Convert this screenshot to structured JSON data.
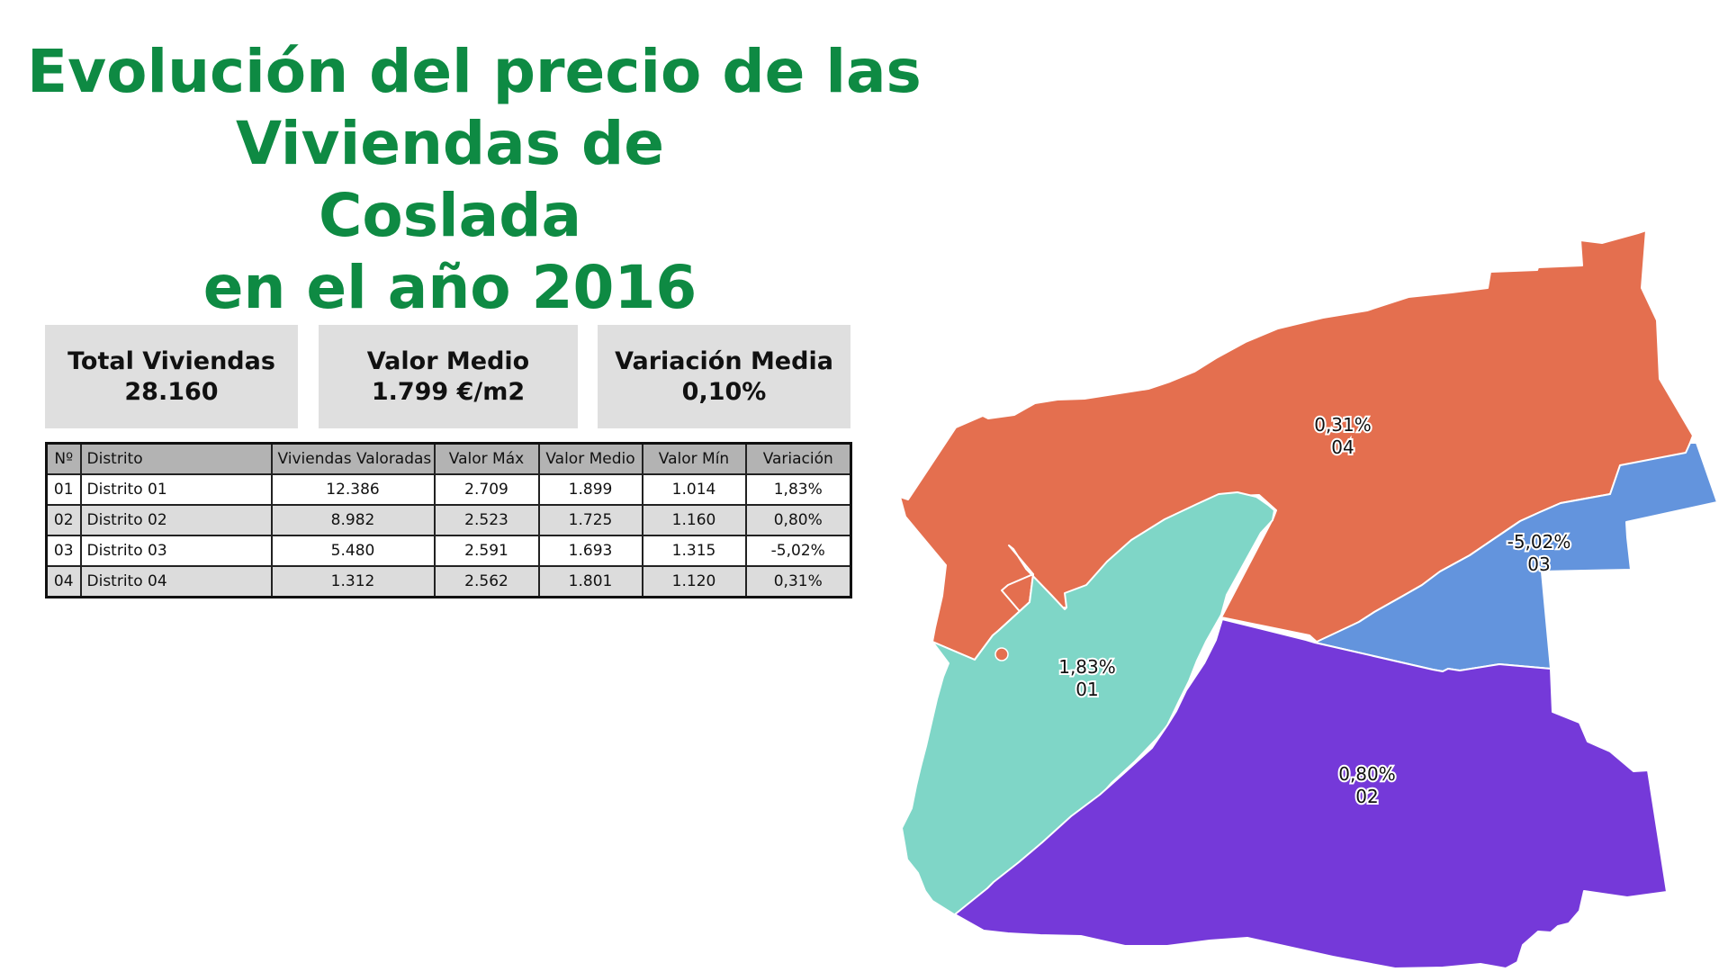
{
  "title": {
    "line1": "Evolución del precio de las",
    "line2": "Viviendas de",
    "line3": "Coslada",
    "line4": "en el año 2016"
  },
  "stats": {
    "total": {
      "label": "Total Viviendas",
      "value": "28.160"
    },
    "medio": {
      "label": "Valor Medio",
      "value": "1.799 €/m2"
    },
    "variacion": {
      "label": "Variación Media",
      "value": "0,10%"
    }
  },
  "table": {
    "headers": [
      "Nº",
      "Distrito",
      "Viviendas Valoradas",
      "Valor Máx",
      "Valor Medio",
      "Valor Mín",
      "Variación"
    ],
    "rows": [
      [
        "01",
        "Distrito 01",
        "12.386",
        "2.709",
        "1.899",
        "1.014",
        "1,83%"
      ],
      [
        "02",
        "Distrito 02",
        "8.982",
        "2.523",
        "1.725",
        "1.160",
        "0,80%"
      ],
      [
        "03",
        "Distrito 03",
        "5.480",
        "2.591",
        "1.693",
        "1.315",
        "-5,02%"
      ],
      [
        "04",
        "Distrito 04",
        "1.312",
        "2.562",
        "1.801",
        "1.120",
        "0,31%"
      ]
    ]
  },
  "map": {
    "districts": [
      {
        "code": "04",
        "variation": "0,31%",
        "color": "#e46f4f"
      },
      {
        "code": "03",
        "variation": "-5,02%",
        "color": "#6394dd"
      },
      {
        "code": "01",
        "variation": "1,83%",
        "color": "#7fd6c7"
      },
      {
        "code": "02",
        "variation": "0,80%",
        "color": "#7539d9"
      }
    ]
  }
}
